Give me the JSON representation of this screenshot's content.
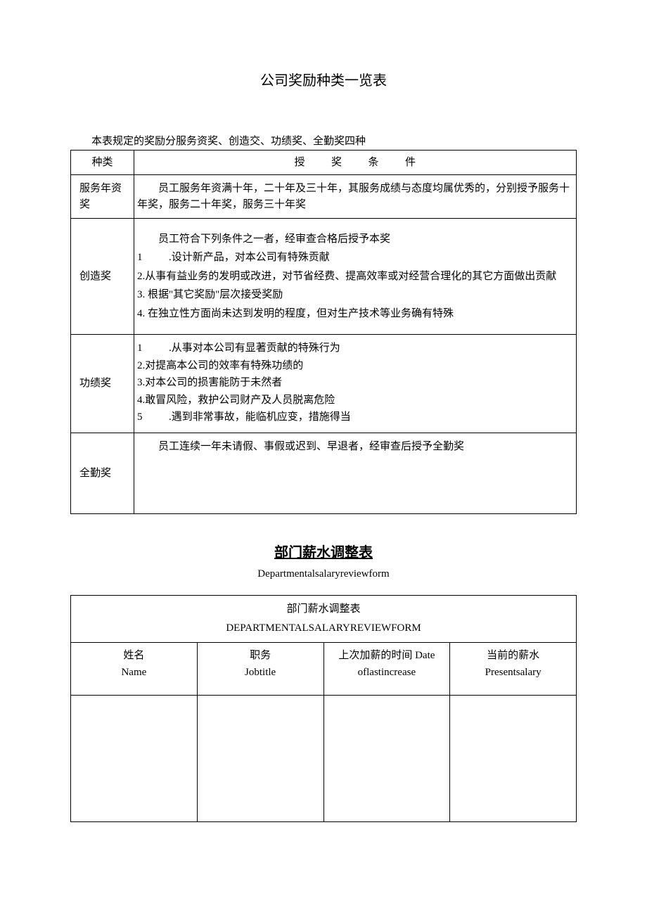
{
  "doc1": {
    "title": "公司奖励种类一览表",
    "intro": "本表规定的奖励分服务资奖、创造交、功绩奖、全勤奖四种",
    "headers": {
      "type": "种类",
      "cond": "授奖条件"
    },
    "rows": [
      {
        "type": "服务年资奖",
        "cond_html": "<p class='indent'>员工服务年资满十年，二十年及三十年，其服务成绩与态度均属优秀的，分别授予服务十年奖，服务二十年奖，服务三十年奖</p>"
      },
      {
        "type": "创造奖",
        "cond_html": "<p class='indent'>员工符合下列条件之一者，经审查合格后授予本奖</p><p>1<span class='gap'></span>.设计新产品，对本公司有特殊贡献</p><p>2.从事有益业务的发明或改进，对节省经费、提高效率或对经营合理化的其它方面做出贡献</p><p>3. 根据\"其它奖励\"层次接受奖励</p><p>4. 在独立性方面尚未达到发明的程度，但对生产技术等业务确有特殊</p>"
      },
      {
        "type": "功绩奖",
        "cond_html": "<p>1<span class='gap'></span>.从事对本公司有显著贡献的特殊行为</p><p>2.对提高本公司的效率有特殊功绩的</p><p>3.对本公司的损害能防于未然者</p><p>4.敢冒风险，救护公司财产及人员脱离危险</p><p>5<span class='gap'></span>.遇到非常事故，能临机应变，措施得当</p>"
      },
      {
        "type": "全勤奖",
        "cond_html": "<p class='indent'>员工连续一年未请假、事假或迟到、早退者，经审查后授予全勤奖</p>"
      }
    ]
  },
  "doc2": {
    "title": "部门薪水调整表",
    "subtitle": "Departmentalsalaryreviewform",
    "header_cn": "部门薪水调整表",
    "header_en": "DEPARTMENTALSALARYREVIEWFORM",
    "columns": [
      {
        "cn": "姓名",
        "en": "Name"
      },
      {
        "cn": "职务",
        "en": "Jobtitle"
      },
      {
        "cn": "上次加薪的时间 Date",
        "en": "oflastincrease"
      },
      {
        "cn": "当前的薪水",
        "en": "Presentsalary"
      }
    ]
  },
  "style": {
    "border_color": "#000000",
    "background_color": "#ffffff",
    "text_color": "#000000",
    "title_fontsize": 20,
    "body_fontsize": 15
  }
}
